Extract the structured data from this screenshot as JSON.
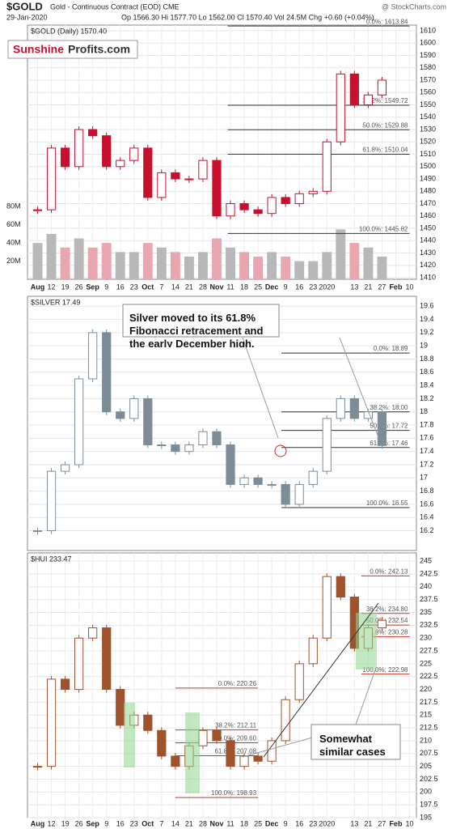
{
  "header": {
    "symbol": "$GOLD",
    "desc": "Gold - Continuous Contract (EOD) CME",
    "date": "29-Jan-2020",
    "quote": "Op 1566.30 Hi 1577.70 Lo 1562.00 Cl 1570.40 Vol 24.5M Chg +0.60 (+0.04%)",
    "source": "@ StockCharts.com"
  },
  "logo": {
    "part1": "Sunshine",
    "part2": "Profits.com"
  },
  "chart_data": [
    {
      "type": "candlestick",
      "title": "$GOLD (Daily) 1570.40",
      "color_up": "#ffffff",
      "color_down": "#c8102e",
      "grid": true,
      "categories": [
        "Aug",
        "12",
        "19",
        "26",
        "Sep",
        "9",
        "16",
        "23",
        "Oct",
        "7",
        "14",
        "21",
        "28",
        "Nov",
        "11",
        "18",
        "25",
        "Dec",
        "9",
        "16",
        "23",
        "2020",
        null,
        "13",
        "21",
        "27",
        "Feb",
        "10"
      ],
      "values": [
        1465,
        1515,
        1500,
        1530,
        1525,
        1500,
        1505,
        1515,
        1475,
        1495,
        1490,
        1490,
        1505,
        1460,
        1470,
        1465,
        1462,
        1475,
        1470,
        1478,
        1480,
        1520,
        1575,
        1550,
        1558,
        1570,
        null,
        null
      ],
      "ylim": [
        1408.7,
        1614.6
      ],
      "yticks": [
        1410,
        1420,
        1430,
        1440,
        1450,
        1460,
        1470,
        1480,
        1490,
        1500,
        1510,
        1520,
        1530,
        1540,
        1550,
        1560,
        1570,
        1580,
        1590,
        1600,
        1610
      ],
      "volume": {
        "values": [
          40,
          50,
          35,
          45,
          35,
          40,
          30,
          30,
          40,
          35,
          30,
          25,
          30,
          45,
          35,
          30,
          25,
          30,
          25,
          20,
          20,
          30,
          55,
          40,
          35,
          25,
          null,
          null
        ],
        "color_up": "#b8b8b8",
        "color_down": "#e8a7ae",
        "ylim": [
          0,
          280
        ],
        "yticks": [
          {
            "value": 20,
            "label": "20M"
          },
          {
            "value": 40,
            "label": "40M"
          },
          {
            "value": 60,
            "label": "60M"
          },
          {
            "value": 80,
            "label": "80M"
          }
        ]
      },
      "fibonacci": [
        [
          {
            "value": 1613.84,
            "label": "0.0%: 1613.84"
          },
          {
            "value": 1549.72,
            "label": "38.2%: 1549.72"
          },
          {
            "value": 1529.88,
            "label": "50.0%: 1529.88"
          },
          {
            "value": 1510.04,
            "label": "61.8%: 1510.04"
          },
          {
            "value": 1445.82,
            "label": "100.0%: 1445.82"
          }
        ]
      ]
    },
    {
      "type": "candlestick",
      "title": "$SILVER 17.49",
      "color_up": "#ffffff",
      "color_down": "#7d8d98",
      "grid": true,
      "values": [
        16.2,
        17.1,
        17.2,
        18.5,
        19.2,
        18.0,
        17.9,
        18.2,
        17.5,
        17.5,
        17.4,
        17.5,
        17.7,
        17.5,
        16.9,
        17.0,
        16.9,
        16.9,
        16.6,
        16.9,
        17.1,
        17.9,
        18.2,
        17.9,
        18.0,
        17.49,
        null,
        null
      ],
      "ylim": [
        15.9,
        19.75
      ],
      "yticks": [
        16.2,
        16.4,
        16.6,
        16.8,
        17.0,
        17.2,
        17.4,
        17.6,
        17.8,
        18.0,
        18.2,
        18.4,
        18.6,
        18.8,
        19.0,
        19.2,
        19.4,
        19.6
      ],
      "annotation": "Silver moved to its 61.8% Fibonacci retracement and the early December high.",
      "fibonacci": [
        [
          {
            "value": 18.89,
            "label": "0.0%: 18.89"
          },
          {
            "value": 18.0,
            "label": "38.2%: 18.00"
          },
          {
            "value": 17.72,
            "label": "50.0%: 17.72"
          },
          {
            "value": 17.46,
            "label": "61.8%: 17.46"
          },
          {
            "value": 16.55,
            "label": "100.0%: 16.55"
          }
        ]
      ]
    },
    {
      "type": "candlestick",
      "title": "$HUI 233.47",
      "color_up": "#ffffff",
      "color_down": "#a0522d",
      "grid": true,
      "categories": [
        "Aug",
        "12",
        "19",
        "26",
        "Sep",
        "9",
        "16",
        "23",
        "Oct",
        "7",
        "14",
        "21",
        "28",
        "Nov",
        "11",
        "18",
        "25",
        "Dec",
        "9",
        "16",
        "23",
        "2020",
        null,
        "13",
        "21",
        "27",
        "Feb",
        "10"
      ],
      "values": [
        205,
        222,
        220,
        230,
        232,
        220,
        213,
        215,
        212,
        207,
        205,
        209,
        212,
        210,
        205,
        207,
        206,
        210,
        218,
        225,
        230,
        242,
        238,
        228,
        232,
        233.47,
        null,
        null
      ],
      "ylim": [
        195,
        246.6
      ],
      "yticks": [
        195,
        197.5,
        200,
        202.5,
        205,
        207.5,
        210,
        212.5,
        215,
        217.5,
        220,
        222.5,
        225,
        227.5,
        230,
        232.5,
        235,
        237.5,
        240,
        242.5,
        245
      ],
      "annotation": "Somewhat similar cases",
      "fibonacci": [
        [
          {
            "value": 242.13,
            "label": "0.0%: 242.13"
          },
          {
            "value": 234.8,
            "label": "38.2%: 234.80"
          },
          {
            "value": 232.54,
            "label": "50.0%: 232.54"
          },
          {
            "value": 230.28,
            "label": "61.8%: 230.28"
          },
          {
            "value": 222.98,
            "label": "100.0%: 222.98"
          }
        ],
        [
          {
            "value": 220.26,
            "label": "0.0%: 220.26"
          },
          {
            "value": 212.11,
            "label": "38.2%: 212.11"
          },
          {
            "value": 209.6,
            "label": "50.0%: 209.60"
          },
          {
            "value": 207.08,
            "label": "61.8%: 207.08"
          },
          {
            "value": 198.93,
            "label": "100.0%: 198.93"
          }
        ]
      ]
    }
  ]
}
